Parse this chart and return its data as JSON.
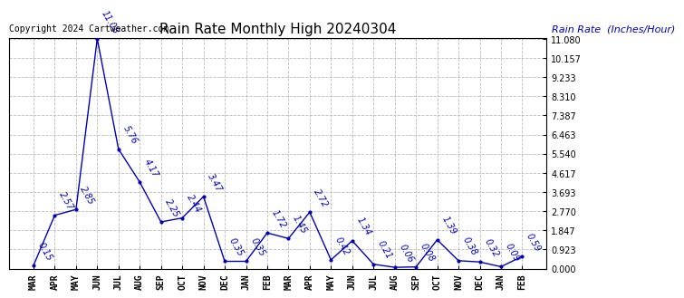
{
  "title": "Rain Rate Monthly High 20240304",
  "ylabel": "Rain Rate  (Inches/Hour)",
  "copyright": "Copyright 2024 Cartweather.com",
  "months": [
    "MAR",
    "APR",
    "MAY",
    "JUN",
    "JUL",
    "AUG",
    "SEP",
    "OCT",
    "NOV",
    "DEC",
    "JAN",
    "FEB",
    "MAR",
    "APR",
    "MAY",
    "JUN",
    "JUL",
    "AUG",
    "SEP",
    "OCT",
    "NOV",
    "DEC",
    "JAN",
    "FEB"
  ],
  "values": [
    0.15,
    2.57,
    2.85,
    11.08,
    5.76,
    4.17,
    2.25,
    2.44,
    3.47,
    0.35,
    0.35,
    1.72,
    1.45,
    2.72,
    0.42,
    1.34,
    0.21,
    0.06,
    0.08,
    1.39,
    0.38,
    0.32,
    0.09,
    0.59
  ],
  "line_color": "#0000bb",
  "marker_color": "#0000bb",
  "label_color": "#0000bb",
  "title_color": "#000000",
  "background_color": "#ffffff",
  "grid_color": "#bbbbbb",
  "ylim_min": 0.0,
  "ylim_max": 11.08,
  "yticks": [
    0.0,
    0.923,
    1.847,
    2.77,
    3.693,
    4.617,
    5.54,
    6.463,
    7.387,
    8.31,
    9.233,
    10.157,
    11.08
  ],
  "title_fontsize": 11,
  "label_fontsize": 7,
  "copyright_fontsize": 7,
  "ylabel_fontsize": 8,
  "xtick_fontsize": 7,
  "ytick_fontsize": 7
}
